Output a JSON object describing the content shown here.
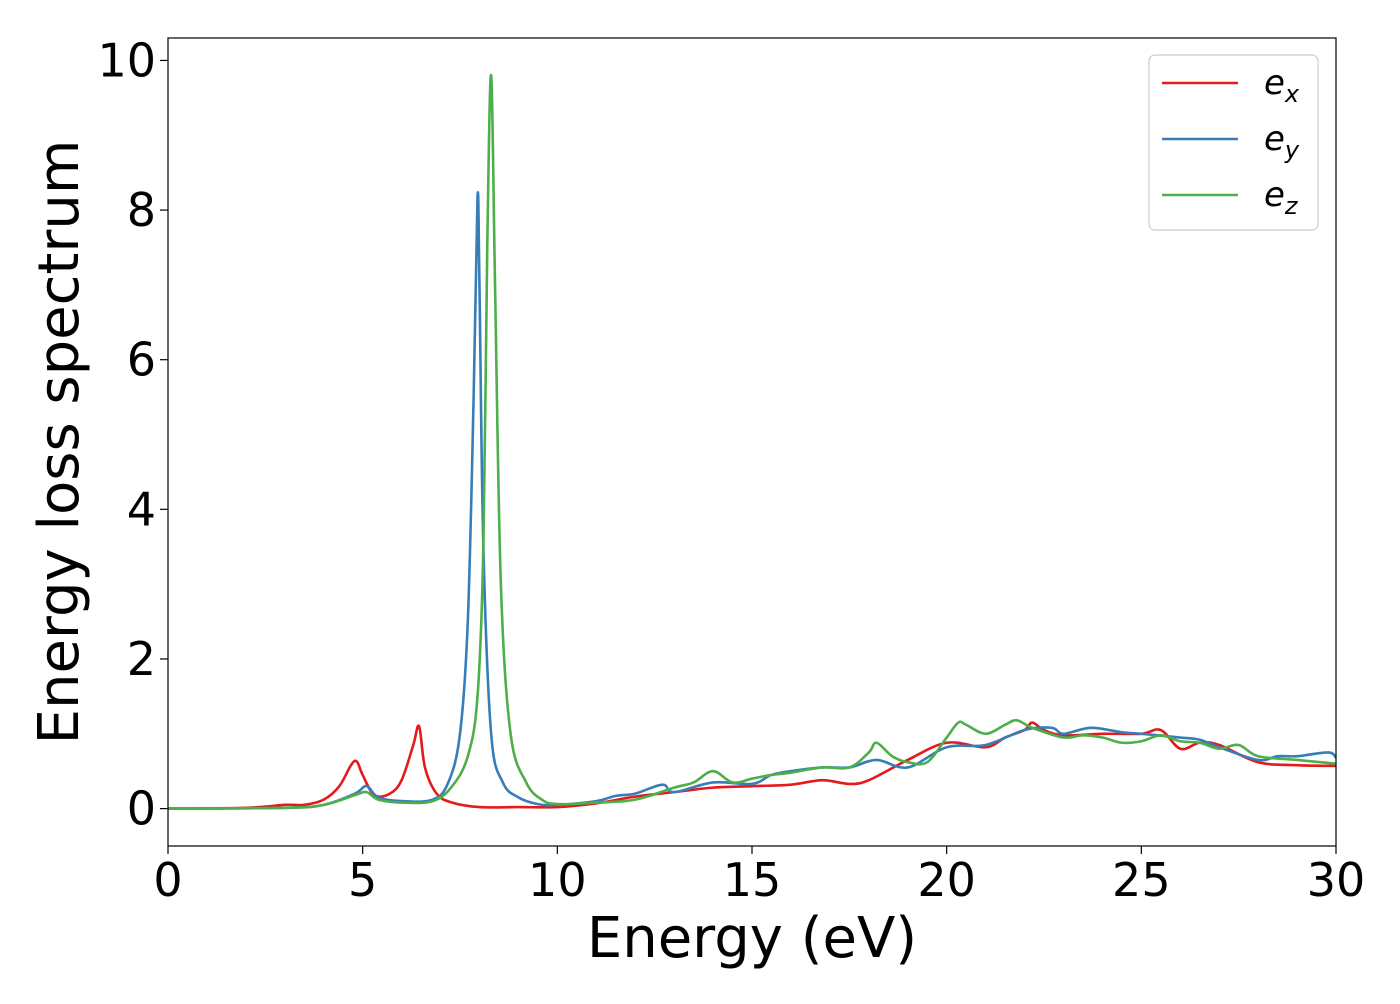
{
  "chart_data": {
    "type": "line",
    "title": "",
    "xlabel": "Energy (eV)",
    "ylabel": "Energy loss spectrum",
    "xlim": [
      0,
      30
    ],
    "ylim": [
      -0.5,
      10.3
    ],
    "xticks": [
      0,
      5,
      10,
      15,
      20,
      25,
      30
    ],
    "yticks": [
      0,
      2,
      4,
      6,
      8,
      10
    ],
    "grid": false,
    "legend_position": "top-right",
    "series": [
      {
        "name": "e",
        "subscript": "x",
        "color": "#e41a1c",
        "x": [
          0,
          2,
          3,
          3.5,
          4,
          4.4,
          4.7,
          4.85,
          5.0,
          5.3,
          5.7,
          6.0,
          6.3,
          6.45,
          6.6,
          6.9,
          7.3,
          8,
          9,
          10,
          11,
          12,
          13,
          14,
          15,
          16,
          16.8,
          17.5,
          18,
          19,
          20,
          21,
          21.5,
          22,
          22.2,
          22.5,
          23,
          24,
          25,
          25.5,
          26,
          26.5,
          27,
          28,
          29,
          30
        ],
        "y": [
          0.0,
          0.01,
          0.05,
          0.05,
          0.12,
          0.3,
          0.58,
          0.63,
          0.45,
          0.18,
          0.2,
          0.38,
          0.85,
          1.1,
          0.55,
          0.2,
          0.08,
          0.02,
          0.02,
          0.02,
          0.07,
          0.16,
          0.22,
          0.28,
          0.3,
          0.32,
          0.38,
          0.33,
          0.38,
          0.65,
          0.88,
          0.82,
          0.95,
          1.05,
          1.15,
          1.05,
          0.98,
          1.0,
          1.0,
          1.05,
          0.8,
          0.88,
          0.85,
          0.62,
          0.58,
          0.57
        ]
      },
      {
        "name": "e",
        "subscript": "y",
        "color": "#377eb8",
        "x": [
          0,
          3,
          4,
          4.8,
          5.1,
          5.4,
          6,
          6.8,
          7.2,
          7.5,
          7.7,
          7.85,
          7.95,
          8.0,
          8.1,
          8.3,
          8.6,
          9,
          9.5,
          10,
          11,
          11.5,
          12,
          12.7,
          13,
          14,
          15,
          15.5,
          16,
          16.8,
          17.5,
          18.2,
          19,
          20,
          21,
          22,
          22.7,
          23,
          23.7,
          24.5,
          25,
          26,
          26.5,
          27,
          28,
          28.5,
          29,
          29.8,
          30
        ],
        "y": [
          0.0,
          0.01,
          0.05,
          0.2,
          0.3,
          0.15,
          0.1,
          0.12,
          0.35,
          1.0,
          2.5,
          5.5,
          8.18,
          7.0,
          3.5,
          1.0,
          0.35,
          0.15,
          0.06,
          0.05,
          0.1,
          0.17,
          0.2,
          0.32,
          0.22,
          0.35,
          0.33,
          0.45,
          0.5,
          0.55,
          0.55,
          0.65,
          0.55,
          0.82,
          0.85,
          1.05,
          1.08,
          1.0,
          1.08,
          1.02,
          1.0,
          0.95,
          0.92,
          0.82,
          0.65,
          0.7,
          0.7,
          0.75,
          0.68
        ]
      },
      {
        "name": "e",
        "subscript": "z",
        "color": "#4daf4a",
        "x": [
          0,
          3,
          4,
          4.8,
          5.1,
          5.4,
          6,
          6.8,
          7.3,
          7.7,
          7.95,
          8.1,
          8.2,
          8.3,
          8.4,
          8.55,
          8.8,
          9.2,
          9.6,
          10,
          11,
          12,
          13,
          13.5,
          14,
          14.5,
          15,
          15.5,
          16,
          16.8,
          17.5,
          18,
          18.2,
          18.6,
          19,
          19.5,
          20,
          20.3,
          20.5,
          21,
          21.5,
          21.8,
          22.2,
          23,
          23.5,
          24,
          24.5,
          25,
          25.5,
          26,
          26.5,
          27,
          27.5,
          28,
          29,
          30
        ],
        "y": [
          0.0,
          0.01,
          0.05,
          0.18,
          0.22,
          0.12,
          0.08,
          0.1,
          0.3,
          0.7,
          1.5,
          3.5,
          7.5,
          9.8,
          7.0,
          3.0,
          1.0,
          0.35,
          0.12,
          0.06,
          0.08,
          0.12,
          0.28,
          0.35,
          0.5,
          0.35,
          0.4,
          0.45,
          0.48,
          0.55,
          0.55,
          0.75,
          0.88,
          0.7,
          0.62,
          0.62,
          0.95,
          1.15,
          1.12,
          1.0,
          1.12,
          1.18,
          1.08,
          0.95,
          0.98,
          0.95,
          0.88,
          0.9,
          0.98,
          0.9,
          0.88,
          0.8,
          0.85,
          0.7,
          0.65,
          0.6
        ]
      }
    ]
  }
}
